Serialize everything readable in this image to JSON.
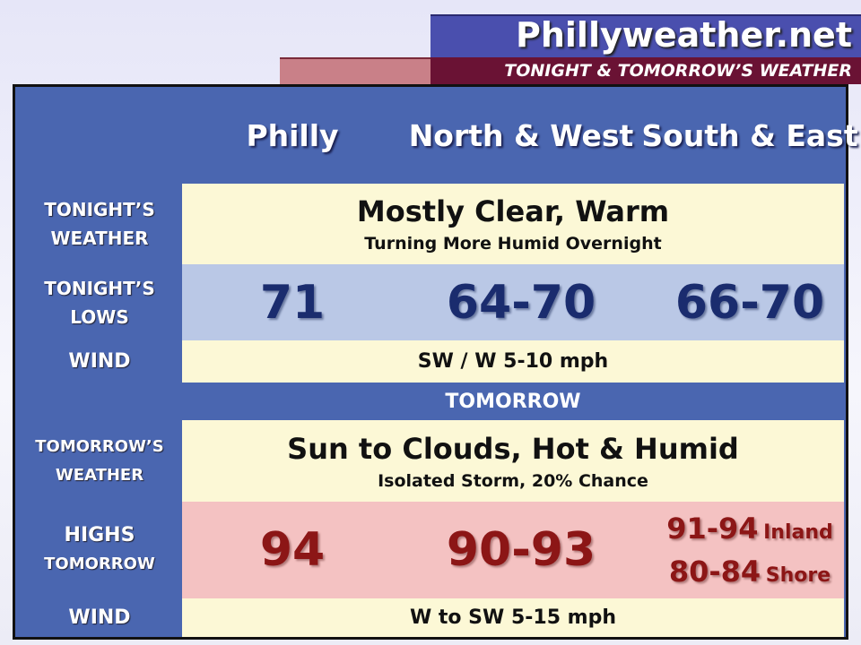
{
  "header": {
    "site": "Phillyweather.net",
    "subtitle": "TONIGHT & TOMORROW’S WEATHER"
  },
  "columns": [
    "Philly",
    "North & West",
    "South & East"
  ],
  "tonight": {
    "weather_label": [
      "TONIGHT’S",
      "WEATHER"
    ],
    "weather": "Mostly Clear, Warm",
    "weather_note": "Turning More Humid Overnight",
    "lows_label": [
      "TONIGHT’S",
      "LOWS"
    ],
    "lows": [
      "71",
      "64-70",
      "66-70"
    ],
    "wind_label": "WIND",
    "wind": "SW / W 5-10 mph"
  },
  "tomorrow": {
    "title": "TOMORROW",
    "weather_label": [
      "TOMORROW’S",
      "WEATHER"
    ],
    "weather": "Sun to Clouds, Hot & Humid",
    "weather_note": "Isolated Storm, 20% Chance",
    "highs_label": [
      "HIGHS",
      "TOMORROW"
    ],
    "highs": [
      "94",
      "90-93"
    ],
    "highs_south_east": [
      {
        "value": "91-94",
        "place": "Inland"
      },
      {
        "value": "80-84",
        "place": "Shore"
      }
    ],
    "wind_label": "WIND",
    "wind": "W to SW 5-15 mph"
  }
}
